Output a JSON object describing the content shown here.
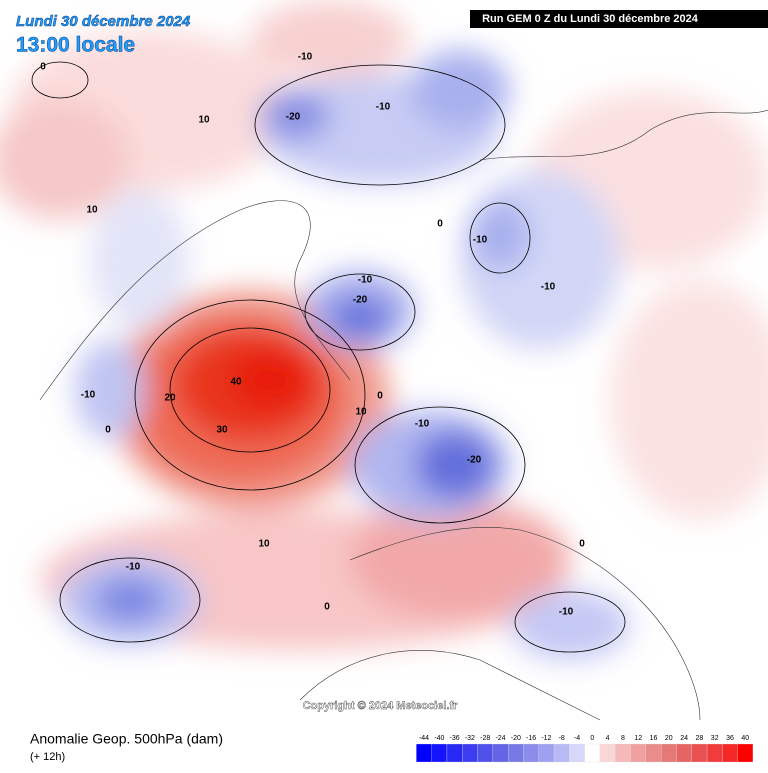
{
  "header": {
    "date": "Lundi 30 décembre 2024",
    "time": "13:00 locale",
    "run": "Run GEM 0 Z du Lundi 30 décembre 2024"
  },
  "map": {
    "contour_labels": [
      0,
      -10,
      10,
      -20,
      -10,
      10,
      0,
      -10,
      -10,
      -20,
      -10,
      40,
      20,
      -10,
      0,
      0,
      10,
      -10,
      30,
      -20,
      10,
      0,
      -10,
      0,
      -10
    ],
    "copyright": "Copyright © 2024 Meteociel.fr"
  },
  "footer": {
    "title": "Anomalie Geop. 500hPa (dam)",
    "subtitle": "(+ 12h)"
  },
  "scale": {
    "labels": [
      -44,
      -40,
      -36,
      -32,
      -28,
      -24,
      -20,
      -16,
      -12,
      -8,
      -4,
      0,
      4,
      8,
      12,
      16,
      20,
      24,
      28,
      32,
      36,
      40
    ],
    "colors": [
      "#0000ff",
      "#1414ff",
      "#2828f5",
      "#3c3cf0",
      "#5050eb",
      "#6464e6",
      "#7878e6",
      "#8c8ceb",
      "#a0a0f0",
      "#b9b9f5",
      "#d7d7fa",
      "#ffffff",
      "#fad7d7",
      "#f5b9b9",
      "#f0a0a0",
      "#eb8c8c",
      "#e67878",
      "#e66464",
      "#eb5050",
      "#f03c3c",
      "#f52828",
      "#ff0000"
    ]
  }
}
